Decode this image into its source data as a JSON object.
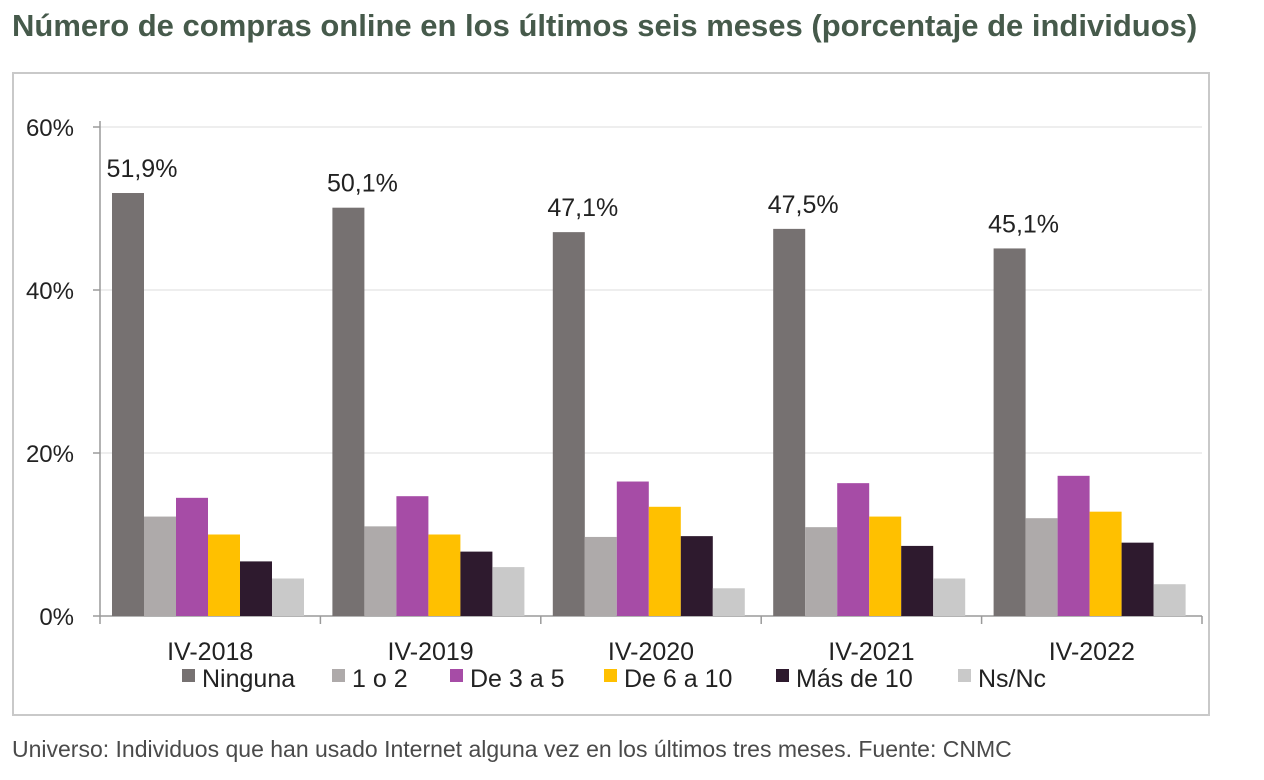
{
  "header": {
    "title": "Número de compras online en los últimos seis meses (porcentaje de individuos)"
  },
  "footer": {
    "note": "Universo: Individuos que han usado Internet alguna vez en los últimos tres meses. Fuente: CNMC"
  },
  "chart_data": {
    "type": "bar",
    "title": "",
    "xlabel": "",
    "ylabel": "",
    "categories": [
      "IV-2018",
      "IV-2019",
      "IV-2020",
      "IV-2021",
      "IV-2022"
    ],
    "yticks": [
      "0%",
      "20%",
      "40%",
      "60%"
    ],
    "ytick_values": [
      0,
      20,
      40,
      60
    ],
    "ylim": [
      0,
      60
    ],
    "grid": true,
    "legend_position": "bottom",
    "series": [
      {
        "name": "Ninguna",
        "color": "#767171",
        "values": [
          51.9,
          50.1,
          47.1,
          47.5,
          45.1
        ]
      },
      {
        "name": "1 o 2",
        "color": "#aeaaaa",
        "values": [
          12.2,
          11.0,
          9.7,
          10.9,
          12.0
        ]
      },
      {
        "name": "De 3 a 5",
        "color": "#a64ca6",
        "values": [
          14.5,
          14.7,
          16.5,
          16.3,
          17.2
        ]
      },
      {
        "name": "De 6 a 10",
        "color": "#ffc000",
        "values": [
          10.0,
          10.0,
          13.4,
          12.2,
          12.8
        ]
      },
      {
        "name": "Más de 10",
        "color": "#2e1a2e",
        "values": [
          6.7,
          7.9,
          9.8,
          8.6,
          9.0
        ]
      },
      {
        "name": "Ns/Nc",
        "color": "#c9c9c9",
        "values": [
          4.6,
          6.0,
          3.4,
          4.6,
          3.9
        ]
      }
    ],
    "data_labels": [
      "51,9%",
      "50,1%",
      "47,1%",
      "47,5%",
      "45,1%"
    ]
  }
}
